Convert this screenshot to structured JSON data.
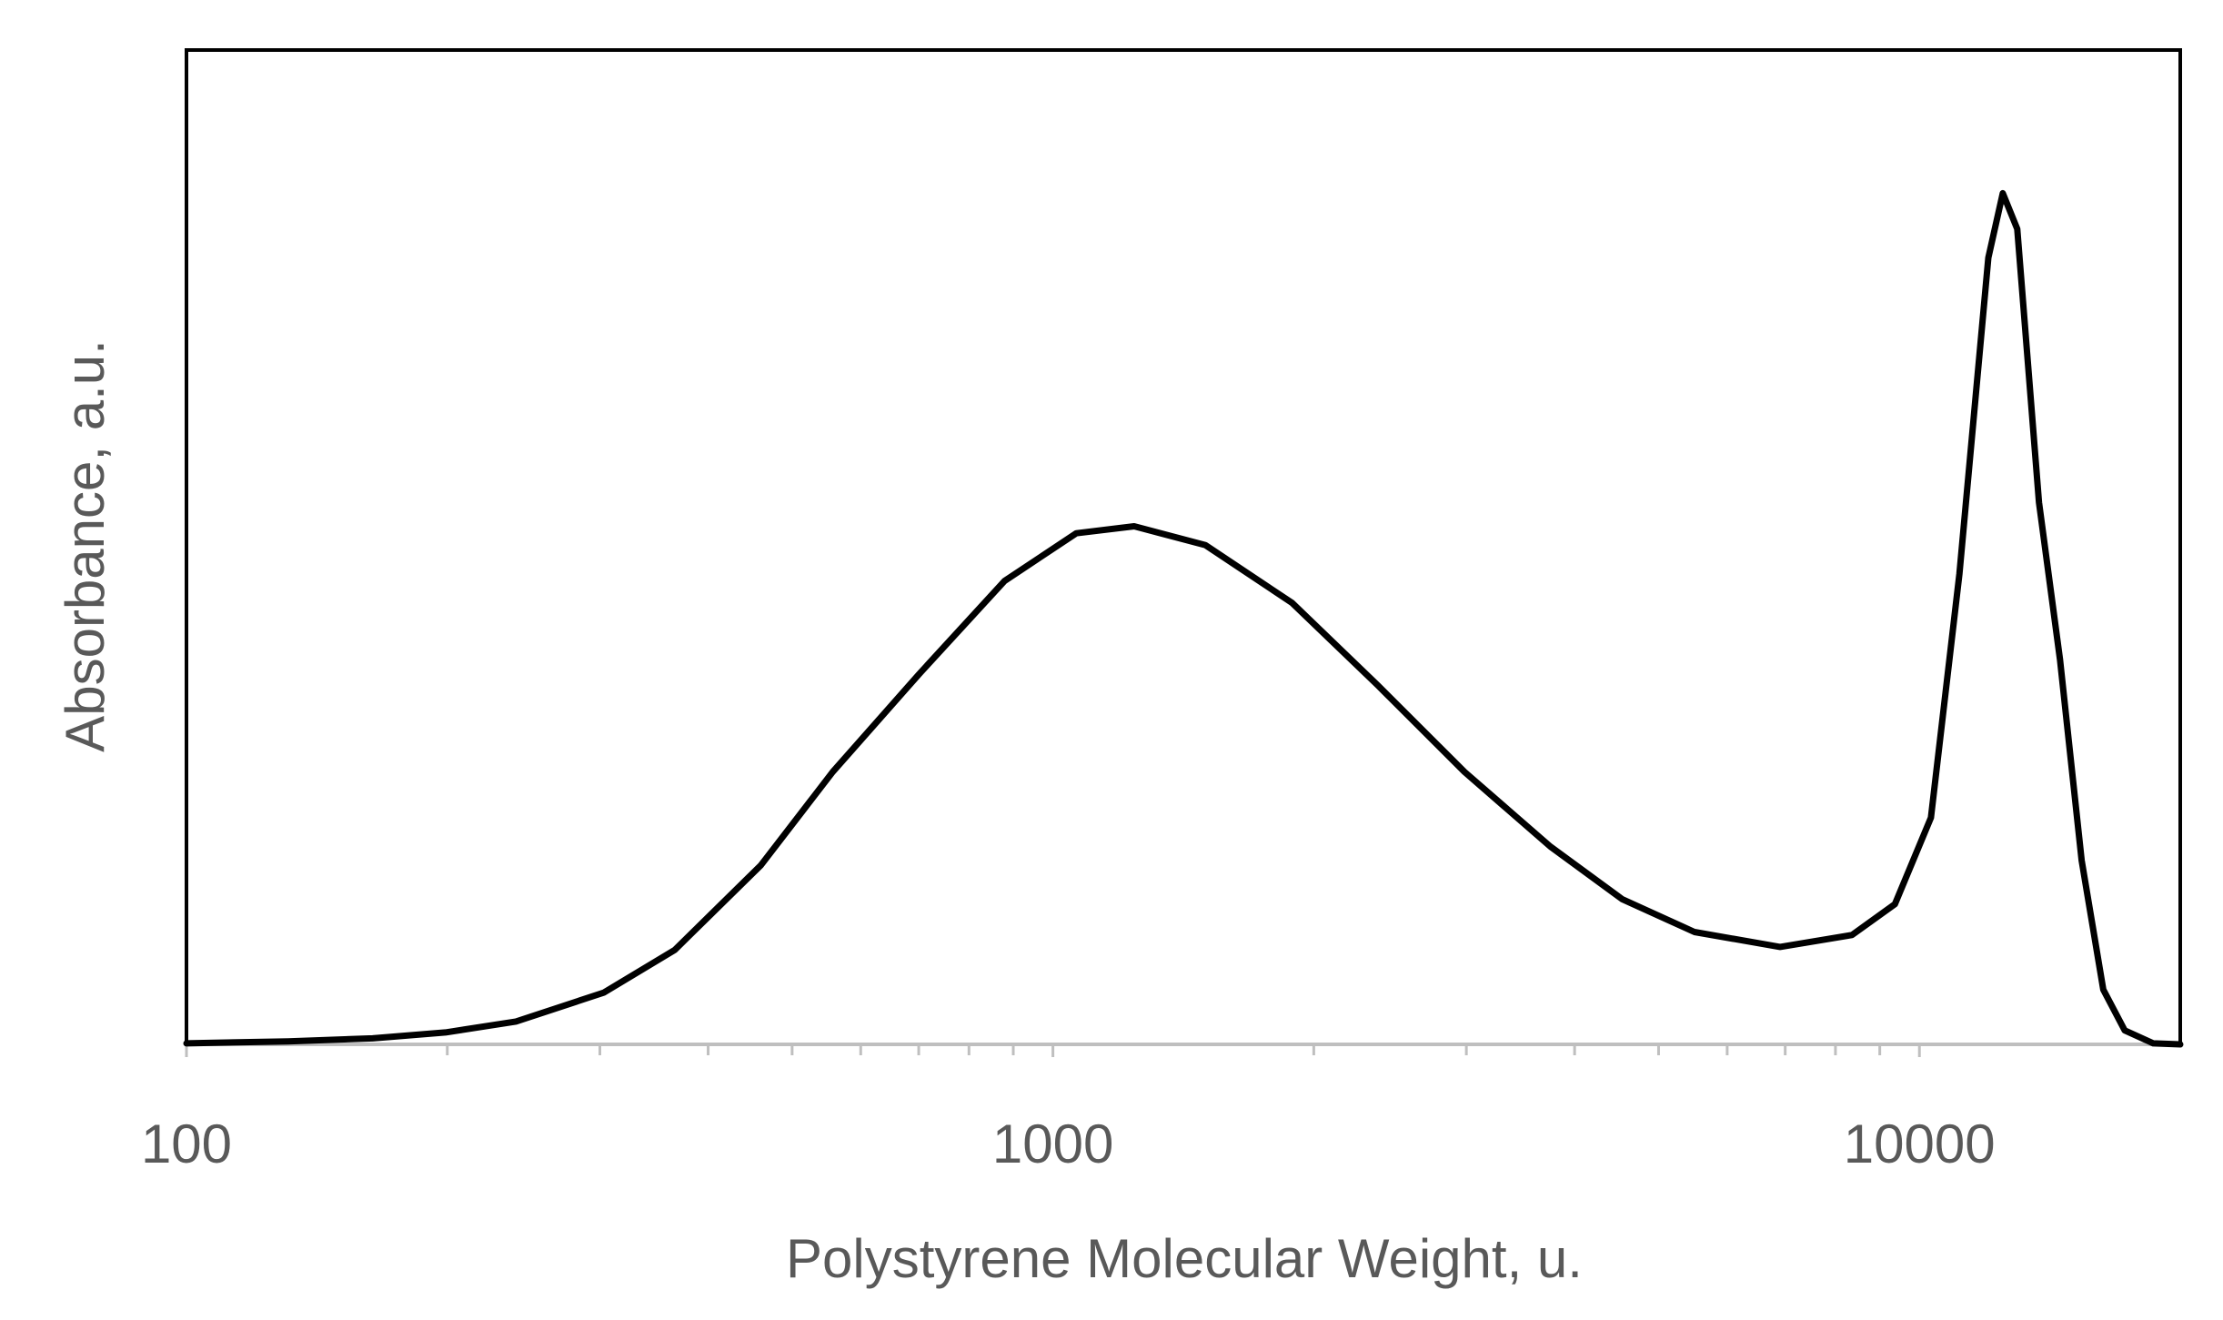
{
  "chart_data": {
    "type": "line",
    "x_label": "Polystyrene Molecular Weight, u.",
    "y_label": "Absorbance, a.u.",
    "x_log": true,
    "xlim": [
      100,
      20000
    ],
    "ylim": [
      0,
      1
    ],
    "xticks": [
      100,
      1000,
      10000
    ],
    "xminor_ticks": [
      200,
      300,
      400,
      500,
      600,
      700,
      800,
      900,
      2000,
      3000,
      4000,
      5000,
      6000,
      7000,
      8000,
      9000
    ],
    "series": [
      {
        "color": "#000000",
        "x": [
          100,
          131,
          164,
          199,
          240,
          303,
          366,
          460,
          557,
          700,
          879,
          1064,
          1241,
          1500,
          1888,
          2371,
          2985,
          3750,
          4540,
          5500,
          6905,
          8360,
          9370,
          10310,
          11120,
          12010,
          12480,
          12970,
          13740,
          14530,
          15390,
          16300,
          17260,
          18620,
          20000
        ],
        "values": [
          0.001,
          0.003,
          0.006,
          0.012,
          0.023,
          0.052,
          0.095,
          0.18,
          0.274,
          0.372,
          0.466,
          0.514,
          0.521,
          0.502,
          0.444,
          0.361,
          0.274,
          0.199,
          0.146,
          0.113,
          0.098,
          0.11,
          0.141,
          0.228,
          0.473,
          0.791,
          0.856,
          0.82,
          0.545,
          0.387,
          0.185,
          0.055,
          0.014,
          0.001,
          0
        ]
      }
    ]
  }
}
